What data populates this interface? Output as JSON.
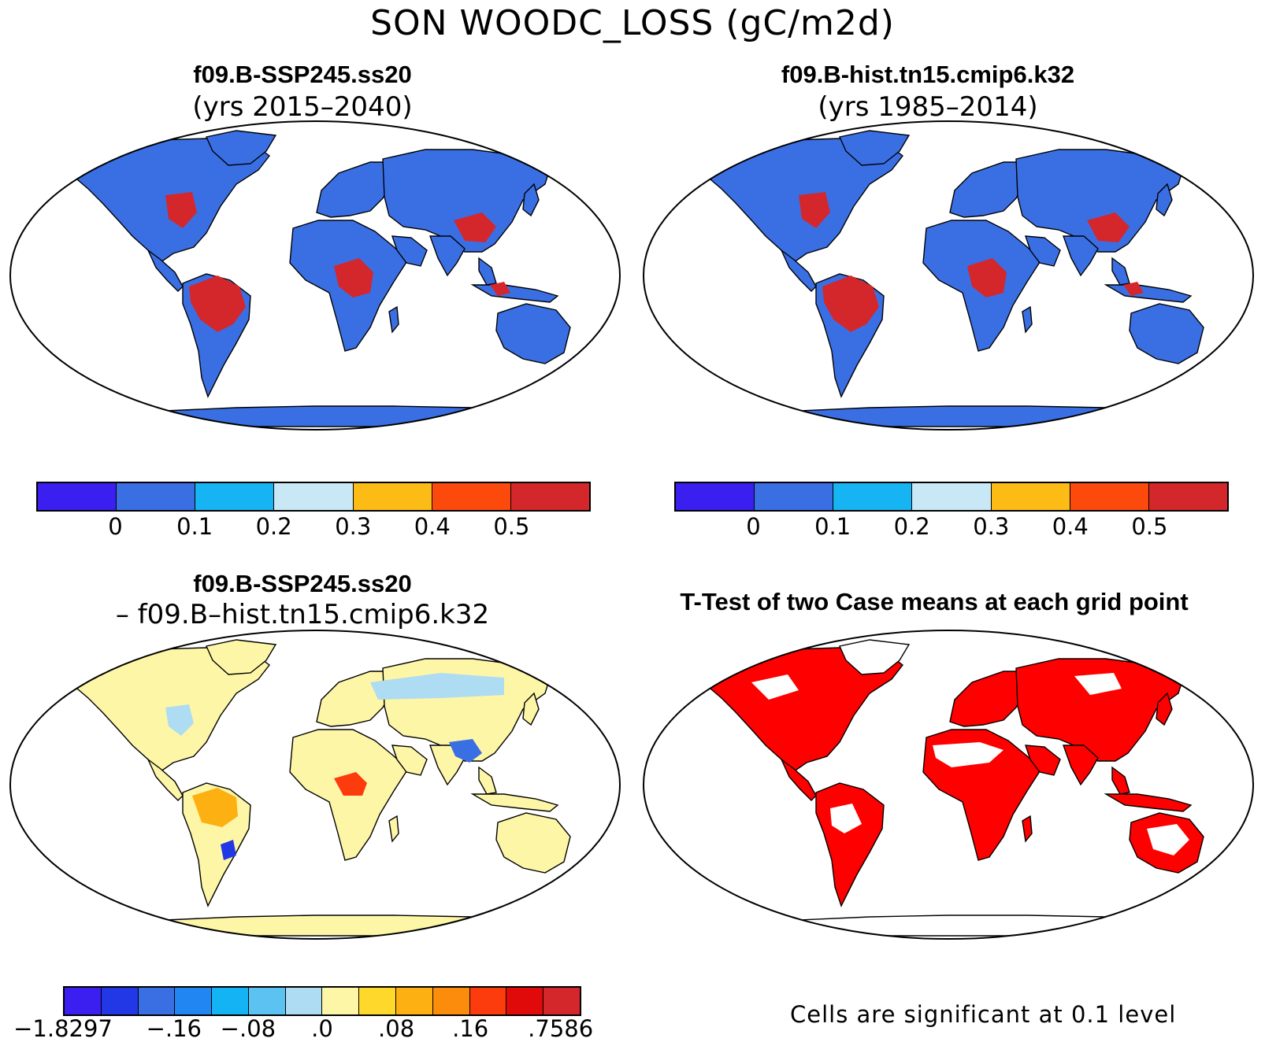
{
  "title": "SON WOODC_LOSS (gC/m2d)",
  "panels": {
    "tl": {
      "title": "f09.B-SSP245.ss20",
      "subtitle": "(yrs 2015–2040)"
    },
    "tr": {
      "title": "f09.B-hist.tn15.cmip6.k32",
      "subtitle": "(yrs 1985–2014)"
    },
    "bl": {
      "title": "f09.B-SSP245.ss20",
      "subtitle": "– f09.B–hist.tn15.cmip6.k32"
    },
    "br": {
      "title": "T-Test of two Case means at each grid point",
      "footnote": "Cells are significant at 0.1 level"
    }
  },
  "colorbars": {
    "abs": {
      "colors": [
        "#3a1ff0",
        "#3a6fe4",
        "#16b4f2",
        "#c8e8f6",
        "#fdbb16",
        "#fc4a0c",
        "#d3272c"
      ],
      "tick_labels": [
        "0",
        "0.1",
        "0.2",
        "0.3",
        "0.4",
        "0.5"
      ]
    },
    "diff": {
      "colors": [
        "#3a1ff0",
        "#2237e6",
        "#3a6fe4",
        "#2286f2",
        "#14b4f4",
        "#5cc2f2",
        "#aedcf2",
        "#fdf6a6",
        "#fed82a",
        "#fdb012",
        "#fc8c0c",
        "#fc3c0c",
        "#e00a0a",
        "#d3272c"
      ],
      "tick_labels": [
        "−1.8297",
        "−.16",
        "−.08",
        ".0",
        ".08",
        ".16",
        ".7586"
      ]
    }
  },
  "map_colors": {
    "land_low": "#3a6fe4",
    "land_high": "#d3272c",
    "diff_land": "#fdf6a6",
    "signif": "#ff0000"
  }
}
